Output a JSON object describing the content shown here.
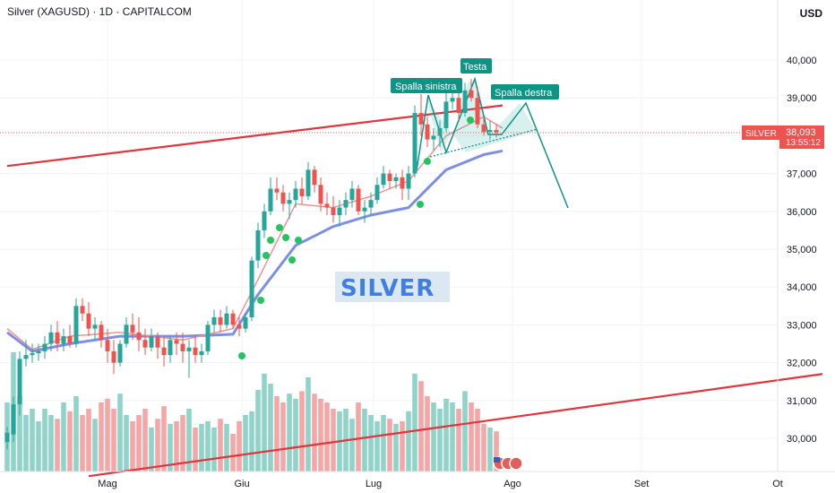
{
  "header": {
    "title": "Silver (XAGUSD) · 1D · CAPITALCOM"
  },
  "axis": {
    "currency": "USD"
  },
  "price_tag": {
    "symbol": "SILVER",
    "price": "38,093",
    "countdown": "13:55:12"
  },
  "annotations": {
    "left_shoulder": "Spalla sinistra",
    "head": "Testa",
    "right_shoulder": "Spalla destra"
  },
  "watermark": "SILVER",
  "colors": {
    "up": "#26a69a",
    "down": "#ef5350",
    "trendline": "#e0353d",
    "ma_blue": "#7b8fe6",
    "ma_red": "#f08b8b",
    "marker": "#22c55e",
    "pattern": "#0e9484"
  },
  "chart_data": {
    "type": "candlestick",
    "title": "Silver (XAGUSD) · 1D · CAPITALCOM",
    "ylabel": "USD",
    "ylim": [
      29200,
      41400
    ],
    "y_ticks": [
      30000,
      31000,
      32000,
      33000,
      34000,
      35000,
      36000,
      37000,
      38000,
      39000,
      40000
    ],
    "y_tick_labels": [
      "30,000",
      "31,000",
      "32,000",
      "33,000",
      "34,000",
      "35,000",
      "36,000",
      "37,000",
      "38,000",
      "39,000",
      "40,000"
    ],
    "x_ticks": [
      "Mag",
      "Giu",
      "Lug",
      "Ago",
      "Set",
      "Ot"
    ],
    "current_price": 38093,
    "candles_ohlc": [
      [
        29900,
        30300,
        29700,
        30150
      ],
      [
        30100,
        31100,
        29900,
        30900
      ],
      [
        30900,
        32300,
        30600,
        32100
      ],
      [
        32100,
        32600,
        31900,
        32200
      ],
      [
        32200,
        32500,
        32000,
        32250
      ],
      [
        32250,
        32500,
        32050,
        32300
      ],
      [
        32300,
        32700,
        32100,
        32500
      ],
      [
        32500,
        33000,
        32300,
        32800
      ],
      [
        32800,
        33100,
        32300,
        32500
      ],
      [
        32500,
        32900,
        32300,
        32700
      ],
      [
        32700,
        33000,
        32400,
        32500
      ],
      [
        32500,
        33700,
        32400,
        33500
      ],
      [
        33500,
        33700,
        33100,
        33300
      ],
      [
        33300,
        33600,
        32700,
        32900
      ],
      [
        32900,
        33200,
        32600,
        33000
      ],
      [
        33000,
        33100,
        32400,
        32600
      ],
      [
        32600,
        32900,
        32000,
        32300
      ],
      [
        32300,
        32600,
        31700,
        32000
      ],
      [
        32000,
        32600,
        31900,
        32500
      ],
      [
        32500,
        33200,
        32400,
        33000
      ],
      [
        33000,
        33300,
        32600,
        32800
      ],
      [
        32800,
        33200,
        32300,
        32600
      ],
      [
        32600,
        32900,
        32200,
        32400
      ],
      [
        32400,
        32900,
        32300,
        32700
      ],
      [
        32700,
        32800,
        32100,
        32400
      ],
      [
        32400,
        32700,
        31900,
        32200
      ],
      [
        32200,
        32700,
        32000,
        32600
      ],
      [
        32600,
        32800,
        32200,
        32500
      ],
      [
        32500,
        32800,
        32000,
        32300
      ],
      [
        32300,
        32600,
        31600,
        32400
      ],
      [
        32400,
        32700,
        32000,
        32200
      ],
      [
        32200,
        32500,
        32000,
        32300
      ],
      [
        32300,
        33100,
        32200,
        33000
      ],
      [
        33000,
        33400,
        32800,
        33200
      ],
      [
        33200,
        33400,
        32800,
        33000
      ],
      [
        33000,
        33500,
        32900,
        33300
      ],
      [
        33300,
        33400,
        32900,
        33000
      ],
      [
        33000,
        33200,
        32700,
        32900
      ],
      [
        32900,
        33300,
        32800,
        33200
      ],
      [
        33200,
        34800,
        33100,
        34700
      ],
      [
        34700,
        35700,
        34500,
        35500
      ],
      [
        35500,
        36200,
        35300,
        36000
      ],
      [
        36000,
        36900,
        35900,
        36600
      ],
      [
        36600,
        36900,
        36300,
        36500
      ],
      [
        36500,
        36700,
        36000,
        36200
      ],
      [
        36200,
        36500,
        35800,
        36300
      ],
      [
        36300,
        36800,
        36100,
        36600
      ],
      [
        36600,
        36900,
        36200,
        36400
      ],
      [
        36400,
        37300,
        36300,
        37100
      ],
      [
        37100,
        37200,
        36500,
        36700
      ],
      [
        36700,
        36900,
        36000,
        36200
      ],
      [
        36200,
        36500,
        35900,
        36100
      ],
      [
        36100,
        36400,
        35700,
        35900
      ],
      [
        35900,
        36300,
        35600,
        36100
      ],
      [
        36100,
        36500,
        35900,
        36300
      ],
      [
        36300,
        36800,
        36100,
        36600
      ],
      [
        36600,
        36700,
        35900,
        36000
      ],
      [
        36000,
        36300,
        35700,
        36100
      ],
      [
        36100,
        36500,
        35900,
        36300
      ],
      [
        36300,
        36900,
        36200,
        36700
      ],
      [
        36700,
        37200,
        36600,
        37000
      ],
      [
        37000,
        37100,
        36600,
        36800
      ],
      [
        36800,
        37000,
        36600,
        36900
      ],
      [
        36900,
        37100,
        36300,
        36600
      ],
      [
        36600,
        37200,
        36300,
        37000
      ],
      [
        37000,
        38800,
        36900,
        38600
      ],
      [
        38600,
        39100,
        38000,
        38300
      ],
      [
        38300,
        38500,
        37700,
        37900
      ],
      [
        37900,
        38200,
        37600,
        38000
      ],
      [
        38000,
        38400,
        37700,
        38200
      ],
      [
        38200,
        39200,
        38100,
        38900
      ],
      [
        38900,
        39300,
        38700,
        39000
      ],
      [
        39000,
        39300,
        38400,
        38600
      ],
      [
        38600,
        39400,
        38500,
        39200
      ],
      [
        39200,
        39500,
        38900,
        39000
      ],
      [
        39000,
        39300,
        38200,
        38300
      ],
      [
        38300,
        38500,
        38000,
        38100
      ],
      [
        38100,
        38400,
        37900,
        38150
      ],
      [
        38150,
        38300,
        37950,
        38093
      ]
    ],
    "volume_relative": [
      0.55,
      0.95,
      0.6,
      0.45,
      0.5,
      0.4,
      0.5,
      0.45,
      0.42,
      0.55,
      0.48,
      0.6,
      0.45,
      0.5,
      0.42,
      0.55,
      0.58,
      0.5,
      0.62,
      0.45,
      0.4,
      0.45,
      0.5,
      0.35,
      0.42,
      0.52,
      0.38,
      0.4,
      0.45,
      0.5,
      0.35,
      0.38,
      0.4,
      0.35,
      0.42,
      0.38,
      0.3,
      0.4,
      0.45,
      0.48,
      0.65,
      0.78,
      0.7,
      0.6,
      0.55,
      0.62,
      0.58,
      0.64,
      0.75,
      0.62,
      0.58,
      0.55,
      0.5,
      0.48,
      0.5,
      0.42,
      0.55,
      0.5,
      0.45,
      0.4,
      0.45,
      0.42,
      0.38,
      0.4,
      0.48,
      0.78,
      0.72,
      0.6,
      0.55,
      0.5,
      0.58,
      0.55,
      0.5,
      0.64,
      0.55,
      0.5,
      0.38,
      0.35,
      0.32
    ],
    "series": [
      {
        "name": "",
        "type": "moving-average",
        "color": "#7b8fe6",
        "x_index": [
          0,
          4,
          10,
          18,
          28,
          36,
          40,
          46,
          52,
          58,
          64,
          70,
          76,
          79
        ],
        "values": [
          32800,
          32300,
          32500,
          32700,
          32700,
          32750,
          33800,
          35100,
          35600,
          35900,
          36100,
          37100,
          37500,
          37600
        ]
      },
      {
        "name": "",
        "type": "moving-average",
        "color": "#f08b8b",
        "x_index": [
          0,
          4,
          10,
          18,
          28,
          36,
          40,
          46,
          52,
          58,
          64,
          70,
          76,
          79
        ],
        "values": [
          32900,
          32350,
          32700,
          32800,
          32600,
          32900,
          34200,
          36200,
          36100,
          36400,
          36800,
          38000,
          38500,
          38200
        ]
      }
    ],
    "trendlines": [
      {
        "from": [
          0,
          37200
        ],
        "to": [
          79,
          38800
        ],
        "color": "#e0353d"
      },
      {
        "from": [
          13,
          29000
        ],
        "to": [
          130,
          31700
        ],
        "color": "#e0353d"
      }
    ],
    "annotations": [
      "Spalla sinistra",
      "Testa",
      "Spalla destra"
    ]
  }
}
